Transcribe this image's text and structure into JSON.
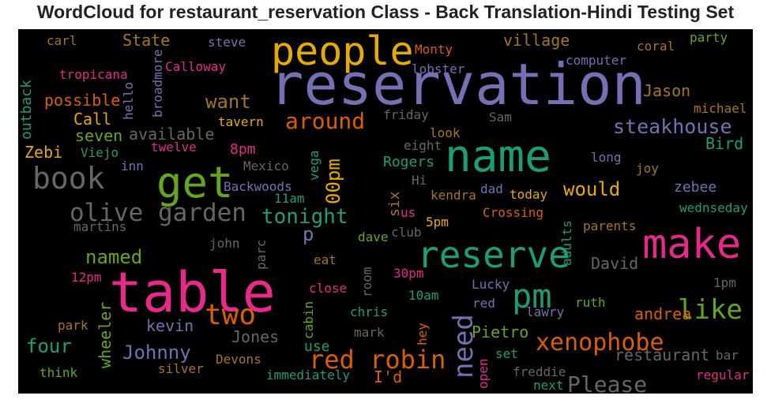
{
  "chart_data": {
    "type": "wordcloud",
    "title": "WordCloud for restaurant_reservation Class - Back Translation-Hindi Testing Set",
    "background": "#000000",
    "words": [
      {
        "text": "reservation",
        "color": "#7570b3"
      },
      {
        "text": "table",
        "color": "#e7298a"
      },
      {
        "text": "people",
        "color": "#e6ab02"
      },
      {
        "text": "name",
        "color": "#1b9e77"
      },
      {
        "text": "make",
        "color": "#e7298a"
      },
      {
        "text": "reserve",
        "color": "#1b9e77"
      },
      {
        "text": "get",
        "color": "#66a61e"
      },
      {
        "text": "book",
        "color": "#666666"
      },
      {
        "text": "olive garden",
        "color": "#666666"
      },
      {
        "text": "pm",
        "color": "#1b9e77"
      },
      {
        "text": "two",
        "color": "#d95f02"
      },
      {
        "text": "red robin",
        "color": "#d95f02"
      },
      {
        "text": "xenophobe",
        "color": "#d95f02"
      },
      {
        "text": "like",
        "color": "#66a61e"
      },
      {
        "text": "around",
        "color": "#d95f02"
      },
      {
        "text": "steakhouse",
        "color": "#7570b3"
      },
      {
        "text": "need",
        "color": "#7570b3"
      },
      {
        "text": "Please",
        "color": "#666666"
      },
      {
        "text": "tonight",
        "color": "#1b9e77"
      },
      {
        "text": "00pm",
        "color": "#e6ab02"
      },
      {
        "text": "want",
        "color": "#a6761d"
      },
      {
        "text": "would",
        "color": "#e6ab02"
      },
      {
        "text": "Johnny",
        "color": "#7570b3"
      },
      {
        "text": "four",
        "color": "#1b9e77"
      },
      {
        "text": "named",
        "color": "#66a61e"
      },
      {
        "text": "village",
        "color": "#a6761d"
      },
      {
        "text": "restaurant",
        "color": "#666666"
      },
      {
        "text": "available",
        "color": "#666666"
      },
      {
        "text": "possible",
        "color": "#d95f02"
      },
      {
        "text": "Call",
        "color": "#e6ab02"
      },
      {
        "text": "seven",
        "color": "#66a61e"
      },
      {
        "text": "Zebi",
        "color": "#e6ab02"
      },
      {
        "text": "State",
        "color": "#a6761d"
      },
      {
        "text": "Jason",
        "color": "#a6761d"
      },
      {
        "text": "David",
        "color": "#666666"
      },
      {
        "text": "kevin",
        "color": "#7570b3"
      },
      {
        "text": "andrea",
        "color": "#d95f02"
      },
      {
        "text": "Jones",
        "color": "#666666"
      },
      {
        "text": "Rogers",
        "color": "#1b9e77"
      },
      {
        "text": "Pietro",
        "color": "#66a61e"
      },
      {
        "text": "p",
        "color": "#7570b3"
      },
      {
        "text": "Bird",
        "color": "#1b9e77"
      },
      {
        "text": "zebee",
        "color": "#7570b3"
      },
      {
        "text": "wheeler",
        "color": "#66a61e"
      },
      {
        "text": "I'd",
        "color": "#d95f02"
      },
      {
        "text": "six",
        "color": "#a6761d"
      },
      {
        "text": "8pm",
        "color": "#e7298a"
      },
      {
        "text": "outback",
        "color": "#1b9e77"
      },
      {
        "text": "Crossing",
        "color": "#d95f02"
      },
      {
        "text": "use",
        "color": "#1b9e77"
      },
      {
        "text": "Lucky",
        "color": "#7570b3"
      },
      {
        "text": "ruth",
        "color": "#66a61e"
      },
      {
        "text": "lawry",
        "color": "#7570b3"
      },
      {
        "text": "Monty",
        "color": "#d95f02"
      },
      {
        "text": "steve",
        "color": "#7570b3"
      },
      {
        "text": "coral",
        "color": "#a6761d"
      },
      {
        "text": "party",
        "color": "#66a61e"
      },
      {
        "text": "computer",
        "color": "#7570b3"
      },
      {
        "text": "carl",
        "color": "#a6761d"
      },
      {
        "text": "broadmore",
        "color": "#7570b3"
      },
      {
        "text": "Calloway",
        "color": "#e7298a"
      },
      {
        "text": "tropicana",
        "color": "#e7298a"
      },
      {
        "text": "hello",
        "color": "#7570b3"
      },
      {
        "text": "lobster",
        "color": "#7570b3"
      },
      {
        "text": "michael",
        "color": "#a6761d"
      },
      {
        "text": "friday",
        "color": "#666666"
      },
      {
        "text": "Sam",
        "color": "#666666"
      },
      {
        "text": "tavern",
        "color": "#e6ab02"
      },
      {
        "text": "look",
        "color": "#a6761d"
      },
      {
        "text": "Viejo",
        "color": "#1b9e77"
      },
      {
        "text": "twelve",
        "color": "#e7298a"
      },
      {
        "text": "eight",
        "color": "#666666"
      },
      {
        "text": "long",
        "color": "#7570b3"
      },
      {
        "text": "inn",
        "color": "#7570b3"
      },
      {
        "text": "Mexico",
        "color": "#666666"
      },
      {
        "text": "vega",
        "color": "#1b9e77"
      },
      {
        "text": "joy",
        "color": "#a6761d"
      },
      {
        "text": "Hi",
        "color": "#666666"
      },
      {
        "text": "Backwoods",
        "color": "#7570b3"
      },
      {
        "text": "11am",
        "color": "#1b9e77"
      },
      {
        "text": "kendra",
        "color": "#a6761d"
      },
      {
        "text": "dad",
        "color": "#7570b3"
      },
      {
        "text": "today",
        "color": "#e6ab02"
      },
      {
        "text": "us",
        "color": "#e7298a"
      },
      {
        "text": "wednseday",
        "color": "#1b9e77"
      },
      {
        "text": "5pm",
        "color": "#e6ab02"
      },
      {
        "text": "martins",
        "color": "#666666"
      },
      {
        "text": "dave",
        "color": "#66a61e"
      },
      {
        "text": "club",
        "color": "#666666"
      },
      {
        "text": "parents",
        "color": "#a6761d"
      },
      {
        "text": "adults",
        "color": "#1b9e77"
      },
      {
        "text": "john",
        "color": "#666666"
      },
      {
        "text": "parc",
        "color": "#666666"
      },
      {
        "text": "eat",
        "color": "#a6761d"
      },
      {
        "text": "12pm",
        "color": "#e7298a"
      },
      {
        "text": "30pm",
        "color": "#e7298a"
      },
      {
        "text": "close",
        "color": "#e7298a"
      },
      {
        "text": "room",
        "color": "#666666"
      },
      {
        "text": "10am",
        "color": "#1b9e77"
      },
      {
        "text": "1pm",
        "color": "#666666"
      },
      {
        "text": "red",
        "color": "#7570b3"
      },
      {
        "text": "cabin",
        "color": "#66a61e"
      },
      {
        "text": "chris",
        "color": "#1b9e77"
      },
      {
        "text": "park",
        "color": "#a6761d"
      },
      {
        "text": "mark",
        "color": "#666666"
      },
      {
        "text": "hey",
        "color": "#d95f02"
      },
      {
        "text": "set",
        "color": "#1b9e77"
      },
      {
        "text": "bar",
        "color": "#666666"
      },
      {
        "text": "silver",
        "color": "#a6761d"
      },
      {
        "text": "Devons",
        "color": "#a6761d"
      },
      {
        "text": "think",
        "color": "#66a61e"
      },
      {
        "text": "immediately",
        "color": "#1b9e77"
      },
      {
        "text": "open",
        "color": "#e7298a"
      },
      {
        "text": "freddie",
        "color": "#666666"
      },
      {
        "text": "next",
        "color": "#1b9e77"
      },
      {
        "text": "regular",
        "color": "#e7298a"
      }
    ]
  }
}
